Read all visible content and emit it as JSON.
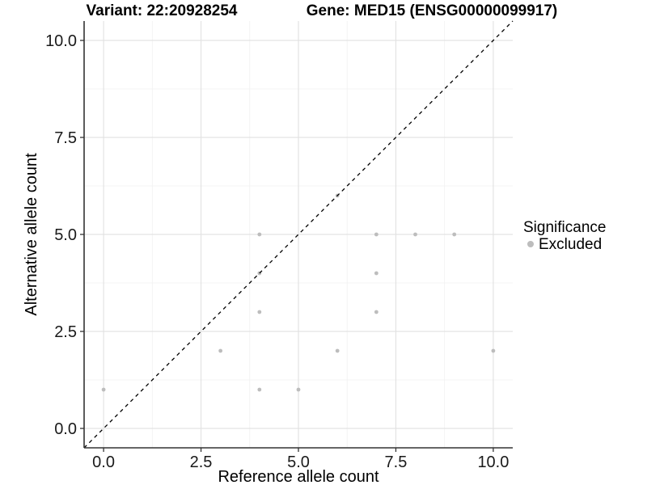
{
  "titles": {
    "left": "Variant: 22:20928254",
    "right": "Gene: MED15 (ENSG00000099917)"
  },
  "chart_data": {
    "type": "scatter",
    "title_left": "Variant: 22:20928254",
    "title_right": "Gene: MED15 (ENSG00000099917)",
    "xlabel": "Reference allele count",
    "ylabel": "Alternative allele count",
    "xlim": [
      -0.5,
      10.5
    ],
    "ylim": [
      -0.5,
      10.5
    ],
    "x_major_ticks": [
      0,
      2.5,
      5,
      7.5,
      10
    ],
    "y_major_ticks": [
      0,
      2.5,
      5,
      7.5,
      10
    ],
    "x_tick_labels": [
      "0.0",
      "2.5",
      "5.0",
      "7.5",
      "10.0"
    ],
    "y_tick_labels": [
      "0.0",
      "2.5",
      "5.0",
      "7.5",
      "10.0"
    ],
    "x_minor_ticks": [
      1.25,
      3.75,
      6.25,
      8.75
    ],
    "y_minor_ticks": [
      1.25,
      3.75,
      6.25,
      8.75
    ],
    "grid": true,
    "series": [
      {
        "name": "Excluded",
        "color": "#bdbdbd",
        "points": [
          [
            0,
            1
          ],
          [
            3,
            2
          ],
          [
            4,
            1
          ],
          [
            4,
            3
          ],
          [
            4,
            4
          ],
          [
            4,
            5
          ],
          [
            5,
            1
          ],
          [
            6,
            2
          ],
          [
            6,
            6
          ],
          [
            7,
            3
          ],
          [
            7,
            4
          ],
          [
            7,
            5
          ],
          [
            8,
            5
          ],
          [
            9,
            5
          ],
          [
            10,
            2
          ]
        ]
      }
    ],
    "reference_line": {
      "type": "abline",
      "slope": 1,
      "intercept": 0,
      "style": "dashed",
      "color": "#000000"
    },
    "legend": {
      "title": "Significance",
      "position": "right",
      "items": [
        {
          "label": "Excluded",
          "color": "#bdbdbd",
          "marker": "circle"
        }
      ]
    }
  },
  "style": {
    "point_color": "#bdbdbd",
    "point_radius": 2.4,
    "legend_dot_radius": 4,
    "grid_major_color": "#e3e3e3",
    "grid_minor_color": "#f1f1f1",
    "axis_line_color": "#333333",
    "abline_color": "#000000",
    "background_color": "#ffffff"
  }
}
